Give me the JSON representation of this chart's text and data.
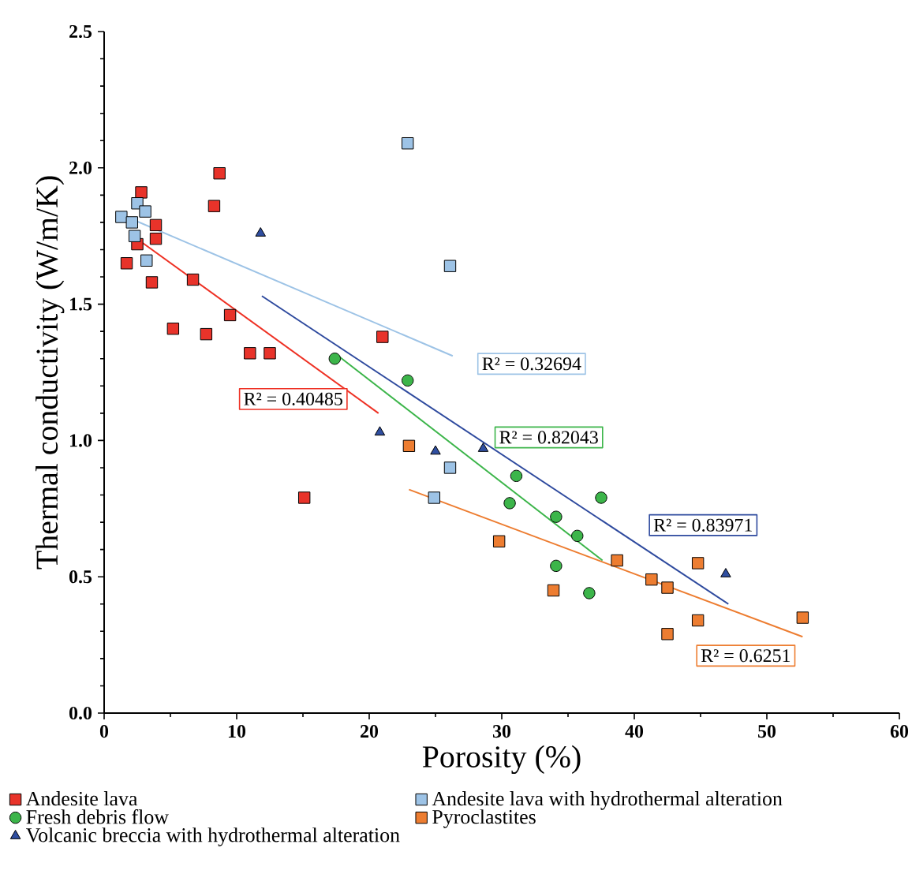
{
  "chart_data": {
    "type": "scatter",
    "xlabel": "Porosity (%)",
    "ylabel": "Thermal conductivity (W/m/K)",
    "xlim": [
      0,
      60
    ],
    "ylim": [
      0,
      2.5
    ],
    "xticks": [
      0,
      10,
      20,
      30,
      40,
      50,
      60
    ],
    "yticks": [
      {
        "value": 0,
        "label": "0.0"
      },
      0.5,
      {
        "value": 1,
        "label": "1.0"
      },
      1.5,
      {
        "value": 2,
        "label": "2.0"
      },
      2.5
    ],
    "legend": "bottom",
    "grid": false,
    "series": [
      {
        "name": "Andesite lava",
        "color": "#e8332a",
        "marker": "square",
        "x": [
          2.8,
          8.7,
          8.3,
          3.9,
          3.9,
          1.7,
          3.6,
          6.7,
          5.2,
          7.7,
          9.5,
          11.0,
          12.5,
          21.0,
          15.1,
          2.5
        ],
        "values": [
          1.91,
          1.98,
          1.86,
          1.79,
          1.74,
          1.65,
          1.58,
          1.59,
          1.41,
          1.39,
          1.46,
          1.32,
          1.32,
          1.38,
          0.79,
          1.72
        ]
      },
      {
        "name": "Andesite lava with hydrothermal alteration",
        "color": "#9dc3e6",
        "marker": "square",
        "x": [
          22.9,
          26.1,
          1.3,
          2.5,
          3.1,
          2.1,
          2.3,
          3.2,
          26.1,
          24.9
        ],
        "values": [
          2.09,
          1.64,
          1.82,
          1.87,
          1.84,
          1.8,
          1.75,
          1.66,
          0.9,
          0.79
        ]
      },
      {
        "name": "Fresh debris flow",
        "color": "#3cb54a",
        "marker": "circle",
        "x": [
          17.4,
          22.9,
          31.1,
          30.6,
          37.5,
          34.1,
          35.7,
          34.1,
          36.6
        ],
        "values": [
          1.3,
          1.22,
          0.87,
          0.77,
          0.79,
          0.72,
          0.65,
          0.54,
          0.44
        ]
      },
      {
        "name": "Pyroclastites",
        "color": "#ed7d31",
        "marker": "square",
        "x": [
          23.0,
          29.8,
          38.7,
          44.8,
          41.3,
          42.5,
          33.9,
          44.8,
          42.5,
          52.7
        ],
        "values": [
          0.98,
          0.63,
          0.56,
          0.55,
          0.49,
          0.46,
          0.45,
          0.34,
          0.29,
          0.35
        ]
      },
      {
        "name": "Volcanic breccia with hydrothermal alteration",
        "color": "#2f4ea0",
        "marker": "triangle",
        "x": [
          11.8,
          20.8,
          25.0,
          28.6,
          46.9
        ],
        "values": [
          1.76,
          1.03,
          0.96,
          0.97,
          0.51
        ]
      },
      {
        "type": "line",
        "name": "R² = 0.40485",
        "color": "#ee3124",
        "marker": "none",
        "x": [
          1.9,
          20.7
        ],
        "values": [
          1.76,
          1.1
        ]
      },
      {
        "type": "line",
        "name": "R² = 0.32694",
        "color": "#9dc3e6",
        "marker": "none",
        "x": [
          1.7,
          26.3
        ],
        "values": [
          1.82,
          1.31
        ]
      },
      {
        "type": "line",
        "name": "R² = 0.82043",
        "color": "#3cb54a",
        "marker": "none",
        "x": [
          17.4,
          37.6
        ],
        "values": [
          1.32,
          0.56
        ]
      },
      {
        "type": "line",
        "name": "R² = 0.83971",
        "color": "#2e4a9e",
        "marker": "none",
        "x": [
          11.9,
          47.1
        ],
        "values": [
          1.53,
          0.4
        ]
      },
      {
        "type": "line",
        "name": "R² = 0.6251",
        "color": "#ed7d31",
        "marker": "none",
        "x": [
          23.0,
          52.7
        ],
        "values": [
          0.82,
          0.28
        ]
      }
    ]
  }
}
